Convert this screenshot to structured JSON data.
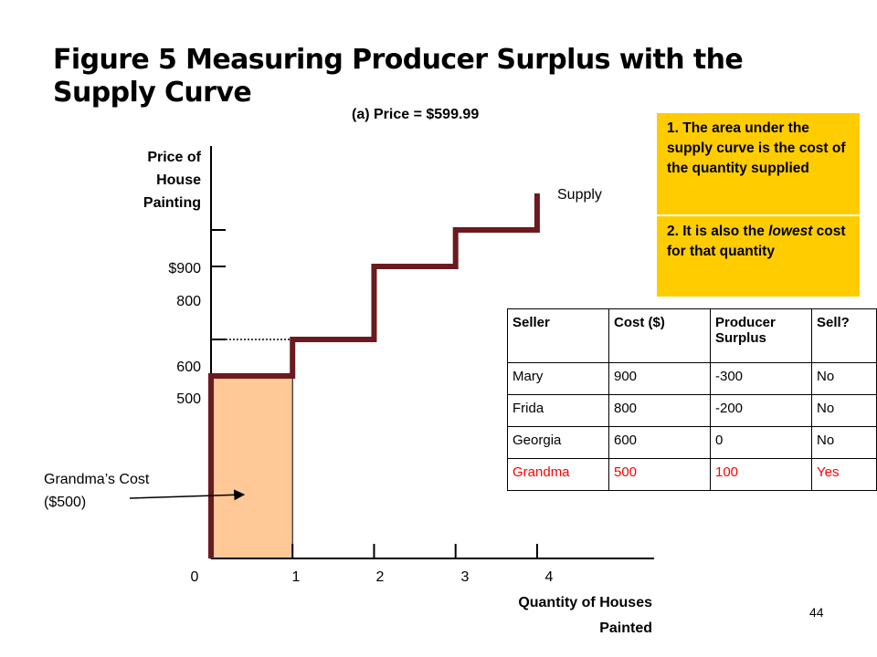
{
  "title": "Figure 5 Measuring Producer Surplus with the Supply Curve",
  "subtitle": "(a) Price = $599.99",
  "notes": [
    "1. The area under the supply curve is the cost of the quantity supplied",
    "2. It is also the lowest cost for that quantity"
  ],
  "page_number": "44",
  "colors": {
    "supply_line": "#6b1a1f",
    "surplus_fill": "#ffc896",
    "note_bg": "#ffcc00",
    "highlight_text": "#ff0000"
  },
  "chart_data": {
    "type": "line",
    "step": true,
    "ylabel": "Price of House Painting",
    "xlabel": "Quantity of Houses Painted",
    "x_ticks": [
      "0",
      "1",
      "2",
      "3",
      "4"
    ],
    "y_ticks": [
      {
        "value": 500,
        "label": "500"
      },
      {
        "value": 600,
        "label": "600"
      },
      {
        "value": 800,
        "label": "800"
      },
      {
        "value": 900,
        "label": "$900"
      }
    ],
    "xlim": [
      0,
      5.2
    ],
    "ylim": [
      0,
      1060
    ],
    "series": [
      {
        "name": "Supply",
        "steps": [
          {
            "x0": 0,
            "x1": 1,
            "y": 500
          },
          {
            "x0": 1,
            "x1": 2,
            "y": 600
          },
          {
            "x0": 2,
            "x1": 3,
            "y": 800
          },
          {
            "x0": 3,
            "x1": 4,
            "y": 900
          }
        ],
        "end_y": 1000
      }
    ],
    "shaded_area": {
      "x0": 0,
      "x1": 1,
      "y0": 0,
      "y1": 500
    },
    "dotted_price_line": {
      "x0": 0,
      "x1": 1,
      "y": 600
    },
    "annotation": {
      "text": "Grandma’s Cost ($500)",
      "target": {
        "x": 0.4,
        "y": 250
      }
    }
  },
  "table": {
    "headers": [
      "Seller",
      "Cost ($)",
      "Producer Surplus",
      "Sell?"
    ],
    "rows": [
      {
        "cells": [
          "Mary",
          "900",
          "-300",
          "No"
        ],
        "highlight": false
      },
      {
        "cells": [
          "Frida",
          "800",
          "-200",
          "No"
        ],
        "highlight": false
      },
      {
        "cells": [
          "Georgia",
          "600",
          "0",
          "No"
        ],
        "highlight": false
      },
      {
        "cells": [
          "Grandma",
          "500",
          "100",
          "Yes"
        ],
        "highlight": true
      }
    ]
  }
}
